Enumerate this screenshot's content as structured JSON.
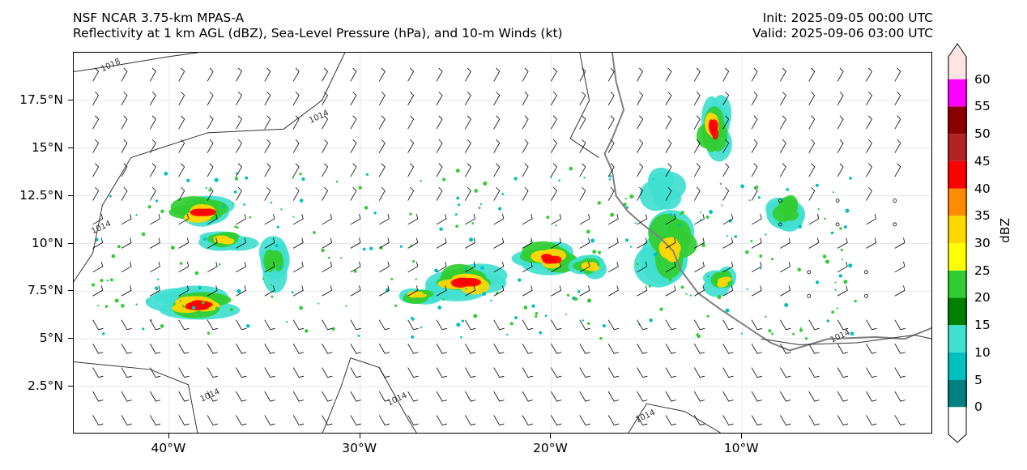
{
  "header": {
    "title_line1": "NSF NCAR 3.75-km MPAS-A",
    "title_line2": "Reflectivity at 1 km AGL (dBZ), Sea-Level Pressure (hPa), and 10-m Winds (kt)",
    "init": "Init: 2025-09-05 00:00 UTC",
    "valid": "Valid: 2025-09-06 03:00 UTC"
  },
  "map": {
    "lon_range": [
      -45,
      0
    ],
    "lat_range": [
      0,
      20
    ],
    "lat_ticks": [
      {
        "value": 2.5,
        "label": "2.5°N"
      },
      {
        "value": 5,
        "label": "5°N"
      },
      {
        "value": 7.5,
        "label": "7.5°N"
      },
      {
        "value": 10,
        "label": "10°N"
      },
      {
        "value": 12.5,
        "label": "12.5°N"
      },
      {
        "value": 15,
        "label": "15°N"
      },
      {
        "value": 17.5,
        "label": "17.5°N"
      }
    ],
    "lon_ticks": [
      {
        "value": -40,
        "label": "40°W"
      },
      {
        "value": -30,
        "label": "30°W"
      },
      {
        "value": -20,
        "label": "20°W"
      },
      {
        "value": -10,
        "label": "10°W"
      }
    ],
    "isobar_labels": [
      {
        "text": "1018",
        "lon": -43.5,
        "lat": 19.0
      },
      {
        "text": "1014",
        "lon": -44.0,
        "lat": 10.5
      },
      {
        "text": "1014",
        "lon": -32.6,
        "lat": 16.3
      },
      {
        "text": "1014",
        "lon": -38.3,
        "lat": 1.7
      },
      {
        "text": "1014",
        "lon": -28.5,
        "lat": 1.5
      },
      {
        "text": "1014",
        "lon": -15.5,
        "lat": 0.6
      },
      {
        "text": "1014",
        "lon": -5.3,
        "lat": 4.8
      }
    ],
    "reflectivity_cells": [
      {
        "lon": -38.2,
        "lat": 11.6,
        "rx": 2.2,
        "ry": 1.0,
        "dbz": 40
      },
      {
        "lon": -37.0,
        "lat": 10.2,
        "rx": 1.6,
        "ry": 0.6,
        "dbz": 35
      },
      {
        "lon": -38.5,
        "lat": 6.8,
        "rx": 3.0,
        "ry": 1.0,
        "dbz": 40
      },
      {
        "lon": -34.5,
        "lat": 9.0,
        "rx": 1.0,
        "ry": 1.4,
        "dbz": 25
      },
      {
        "lon": -24.5,
        "lat": 8.0,
        "rx": 2.6,
        "ry": 1.1,
        "dbz": 45
      },
      {
        "lon": -27.0,
        "lat": 7.3,
        "rx": 1.4,
        "ry": 0.6,
        "dbz": 35
      },
      {
        "lon": -20.0,
        "lat": 9.2,
        "rx": 2.0,
        "ry": 1.0,
        "dbz": 40
      },
      {
        "lon": -18.0,
        "lat": 8.8,
        "rx": 1.2,
        "ry": 0.8,
        "dbz": 35
      },
      {
        "lon": -13.5,
        "lat": 9.8,
        "rx": 2.0,
        "ry": 2.2,
        "dbz": 35
      },
      {
        "lon": -14.5,
        "lat": 12.8,
        "rx": 1.4,
        "ry": 1.2,
        "dbz": 15
      },
      {
        "lon": -11.5,
        "lat": 16.0,
        "rx": 1.0,
        "ry": 1.8,
        "dbz": 45
      },
      {
        "lon": -7.8,
        "lat": 11.8,
        "rx": 1.4,
        "ry": 1.2,
        "dbz": 25
      },
      {
        "lon": -11.0,
        "lat": 8.0,
        "rx": 1.0,
        "ry": 0.8,
        "dbz": 35
      }
    ],
    "coast_points": [
      [
        -16.8,
        20.0
      ],
      [
        -16.6,
        18.5
      ],
      [
        -16.2,
        17.0
      ],
      [
        -16.8,
        15.5
      ],
      [
        -17.2,
        14.7
      ],
      [
        -16.8,
        13.8
      ],
      [
        -16.6,
        12.5
      ],
      [
        -16.0,
        11.7
      ],
      [
        -15.2,
        11.0
      ],
      [
        -14.3,
        10.3
      ],
      [
        -13.6,
        9.6
      ],
      [
        -13.2,
        8.6
      ],
      [
        -12.3,
        7.4
      ],
      [
        -11.2,
        6.6
      ],
      [
        -10.0,
        5.8
      ],
      [
        -8.5,
        4.8
      ],
      [
        -7.5,
        4.4
      ],
      [
        -5.5,
        5.0
      ],
      [
        -3.0,
        5.1
      ],
      [
        -1.5,
        5.0
      ],
      [
        0.0,
        5.6
      ]
    ]
  },
  "colorbar": {
    "label": "dBZ",
    "ticks": [
      "0",
      "5",
      "10",
      "15",
      "20",
      "25",
      "30",
      "35",
      "40",
      "45",
      "50",
      "55",
      "60"
    ],
    "colors": [
      "#ffffff",
      "#008080",
      "#00c0c0",
      "#40e0d0",
      "#008000",
      "#32cd32",
      "#ffff00",
      "#ffd700",
      "#ff8c00",
      "#ff0000",
      "#b22222",
      "#8b0000",
      "#ff00ff",
      "#ffe4e1"
    ]
  }
}
